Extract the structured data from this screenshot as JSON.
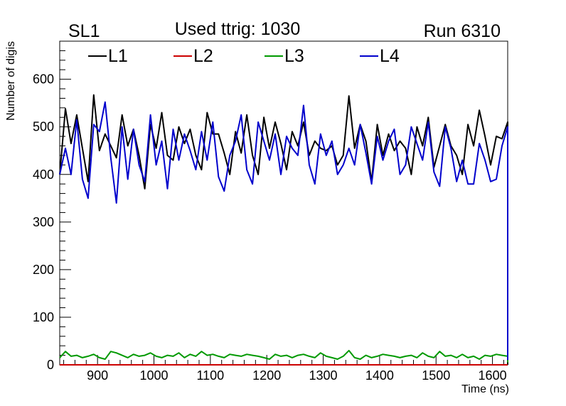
{
  "chart_data": {
    "type": "line",
    "title": "Used ttrig: 1030",
    "left_label": "SL1",
    "right_label": "Run 6310",
    "xlabel": "Time (ns)",
    "ylabel": "Number of digis",
    "xlim": [
      833,
      1627
    ],
    "ylim": [
      0,
      680
    ],
    "xticks": [
      900,
      1000,
      1100,
      1200,
      1300,
      1400,
      1500,
      1600
    ],
    "yticks": [
      0,
      100,
      200,
      300,
      400,
      500,
      600
    ],
    "x_start": 833,
    "x_step": 10.05,
    "legend": [
      "L1",
      "L2",
      "L3",
      "L4"
    ],
    "series": [
      {
        "name": "L1",
        "color": "#000000",
        "values": [
          400,
          538,
          465,
          525,
          455,
          385,
          567,
          450,
          485,
          460,
          435,
          525,
          460,
          495,
          440,
          370,
          505,
          455,
          530,
          440,
          430,
          500,
          465,
          495,
          440,
          410,
          530,
          485,
          485,
          445,
          400,
          490,
          445,
          525,
          440,
          400,
          520,
          455,
          510,
          465,
          410,
          490,
          460,
          510,
          440,
          470,
          455,
          450,
          460,
          420,
          440,
          565,
          455,
          505,
          470,
          385,
          505,
          440,
          485,
          450,
          470,
          455,
          400,
          500,
          460,
          520,
          415,
          460,
          505,
          460,
          440,
          400,
          505,
          460,
          535,
          480,
          420,
          480,
          475,
          510,
          0
        ]
      },
      {
        "name": "L2",
        "color": "#cc0000",
        "values": [
          0,
          0,
          0,
          0,
          0,
          0,
          0,
          0,
          0,
          0,
          0,
          0,
          0,
          0,
          0,
          0,
          0,
          0,
          0,
          0,
          0,
          0,
          0,
          0,
          0,
          0,
          0,
          0,
          0,
          0,
          0,
          0,
          0,
          0,
          0,
          0,
          0,
          0,
          0,
          0,
          0,
          0,
          0,
          0,
          0,
          0,
          0,
          0,
          0,
          0,
          0,
          0,
          0,
          0,
          0,
          0,
          0,
          0,
          0,
          0,
          0,
          0,
          0,
          0,
          0,
          0,
          0,
          0,
          0,
          0,
          0,
          0,
          0,
          0,
          0,
          0,
          0,
          0,
          0,
          0,
          0
        ]
      },
      {
        "name": "L3",
        "color": "#009900",
        "values": [
          15,
          28,
          18,
          20,
          15,
          18,
          22,
          15,
          12,
          28,
          25,
          20,
          15,
          22,
          18,
          20,
          25,
          18,
          15,
          20,
          18,
          25,
          15,
          22,
          18,
          28,
          20,
          22,
          18,
          15,
          22,
          20,
          18,
          22,
          20,
          18,
          15,
          12,
          22,
          18,
          20,
          15,
          20,
          22,
          18,
          15,
          25,
          18,
          15,
          12,
          18,
          30,
          15,
          12,
          20,
          15,
          18,
          22,
          20,
          18,
          15,
          18,
          20,
          15,
          25,
          18,
          15,
          28,
          18,
          20,
          15,
          22,
          15,
          18,
          12,
          20,
          18,
          22,
          20,
          18,
          5
        ]
      },
      {
        "name": "L4",
        "color": "#0000cc",
        "values": [
          400,
          455,
          400,
          515,
          390,
          350,
          505,
          490,
          552,
          435,
          340,
          500,
          390,
          495,
          420,
          385,
          525,
          420,
          470,
          370,
          495,
          430,
          485,
          450,
          410,
          490,
          430,
          510,
          395,
          365,
          440,
          470,
          525,
          410,
          380,
          510,
          470,
          430,
          485,
          400,
          480,
          455,
          440,
          545,
          420,
          380,
          485,
          440,
          470,
          400,
          420,
          455,
          420,
          505,
          445,
          380,
          480,
          430,
          470,
          495,
          400,
          420,
          500,
          465,
          430,
          510,
          405,
          375,
          500,
          455,
          385,
          430,
          380,
          380,
          465,
          430,
          385,
          390,
          460,
          500,
          10
        ]
      }
    ]
  }
}
